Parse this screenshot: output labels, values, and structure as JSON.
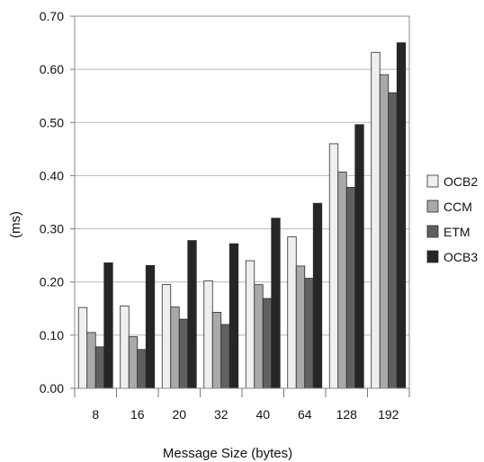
{
  "chart_data": {
    "type": "bar",
    "xlabel": "Message Size (bytes)",
    "ylabel": "(ms)",
    "ylim": [
      0,
      0.7
    ],
    "yticks": [
      "0.00",
      "0.10",
      "0.20",
      "0.30",
      "0.40",
      "0.50",
      "0.60",
      "0.70"
    ],
    "categories": [
      "8",
      "16",
      "20",
      "32",
      "40",
      "64",
      "128",
      "192"
    ],
    "grid": "horizontal",
    "legend_position": "right",
    "series": [
      {
        "name": "OCB2",
        "color": "#efefef",
        "values": [
          0.152,
          0.155,
          0.195,
          0.202,
          0.24,
          0.285,
          0.46,
          0.632
        ]
      },
      {
        "name": "CCM",
        "color": "#a9a9a9",
        "values": [
          0.105,
          0.097,
          0.153,
          0.143,
          0.195,
          0.23,
          0.407,
          0.59
        ]
      },
      {
        "name": "ETM",
        "color": "#606060",
        "values": [
          0.078,
          0.073,
          0.13,
          0.12,
          0.169,
          0.207,
          0.378,
          0.556
        ]
      },
      {
        "name": "OCB3",
        "color": "#262626",
        "values": [
          0.236,
          0.231,
          0.278,
          0.272,
          0.32,
          0.348,
          0.496,
          0.65
        ]
      }
    ]
  }
}
